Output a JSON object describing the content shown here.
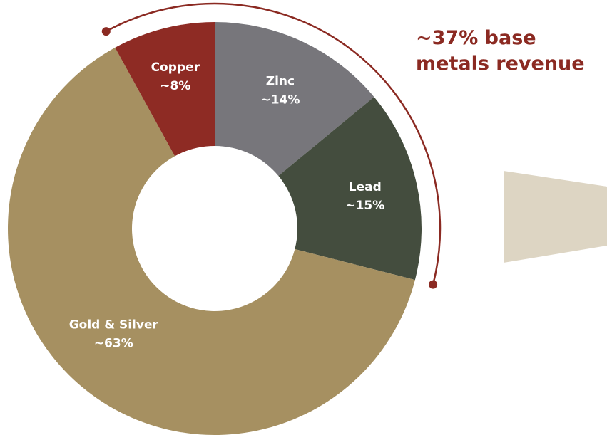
{
  "chart_data": {
    "type": "donut",
    "title": "",
    "total_percent": 100,
    "slices": [
      {
        "name": "Copper",
        "value_label": "~8%",
        "value": 8,
        "color": "#8e2b24"
      },
      {
        "name": "Zinc",
        "value_label": "~14%",
        "value": 14,
        "color": "#77767b"
      },
      {
        "name": "Lead",
        "value_label": "~15%",
        "value": 15,
        "color": "#444d3e"
      },
      {
        "name": "Gold & Silver",
        "value_label": "~63%",
        "value": 63,
        "color": "#a69061"
      }
    ],
    "annotation": {
      "lines": [
        "~37% base",
        "metals revenue"
      ],
      "spans": [
        "Copper",
        "Zinc",
        "Lead"
      ],
      "color": "#8b2a22"
    }
  },
  "decor": {
    "arrow_color": "#ddd5c3"
  }
}
